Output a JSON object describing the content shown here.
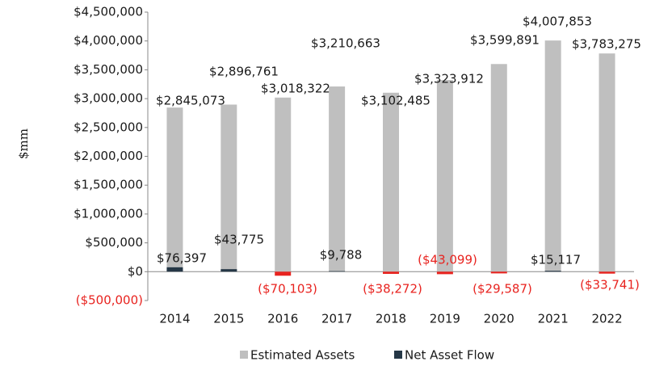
{
  "chart_data": {
    "type": "bar",
    "y_label": "$mm",
    "categories": [
      "2014",
      "2015",
      "2016",
      "2017",
      "2018",
      "2019",
      "2020",
      "2021",
      "2022"
    ],
    "series": [
      {
        "name": "Estimated Assets",
        "color": "#bfbfbf",
        "values": [
          2845073,
          2896761,
          3018322,
          3210663,
          3102485,
          3323912,
          3599891,
          4007853,
          3783275
        ],
        "value_labels": [
          "$2,845,073",
          "$2,896,761",
          "$3,018,322",
          "$3,210,663",
          "$3,102,485",
          "$3,323,912",
          "$3,599,891",
          "$4,007,853",
          "$3,783,275"
        ]
      },
      {
        "name": "Net Asset Flow",
        "color": "#253746",
        "values": [
          76397,
          43775,
          -70103,
          9788,
          -38272,
          -43099,
          -29587,
          15117,
          -33741
        ],
        "value_labels": [
          "$76,397",
          "$43,775",
          "($70,103)",
          "$9,788",
          "($38,272)",
          "($43,099)",
          "($29,587)",
          "$15,117",
          "($33,741)"
        ]
      }
    ],
    "negative_color": "#e8231f",
    "ylim": [
      -500000,
      4500000
    ],
    "yticks": [
      {
        "value": -500000,
        "label": "($500,000)"
      },
      {
        "value": 0,
        "label": "$0"
      },
      {
        "value": 500000,
        "label": "$500,000"
      },
      {
        "value": 1000000,
        "label": "$1,000,000"
      },
      {
        "value": 1500000,
        "label": "$1,500,000"
      },
      {
        "value": 2000000,
        "label": "$2,000,000"
      },
      {
        "value": 2500000,
        "label": "$2,500,000"
      },
      {
        "value": 3000000,
        "label": "$3,000,000"
      },
      {
        "value": 3500000,
        "label": "$3,500,000"
      },
      {
        "value": 4000000,
        "label": "$4,000,000"
      },
      {
        "value": 4500000,
        "label": "$4,500,000"
      }
    ],
    "grid": false
  }
}
